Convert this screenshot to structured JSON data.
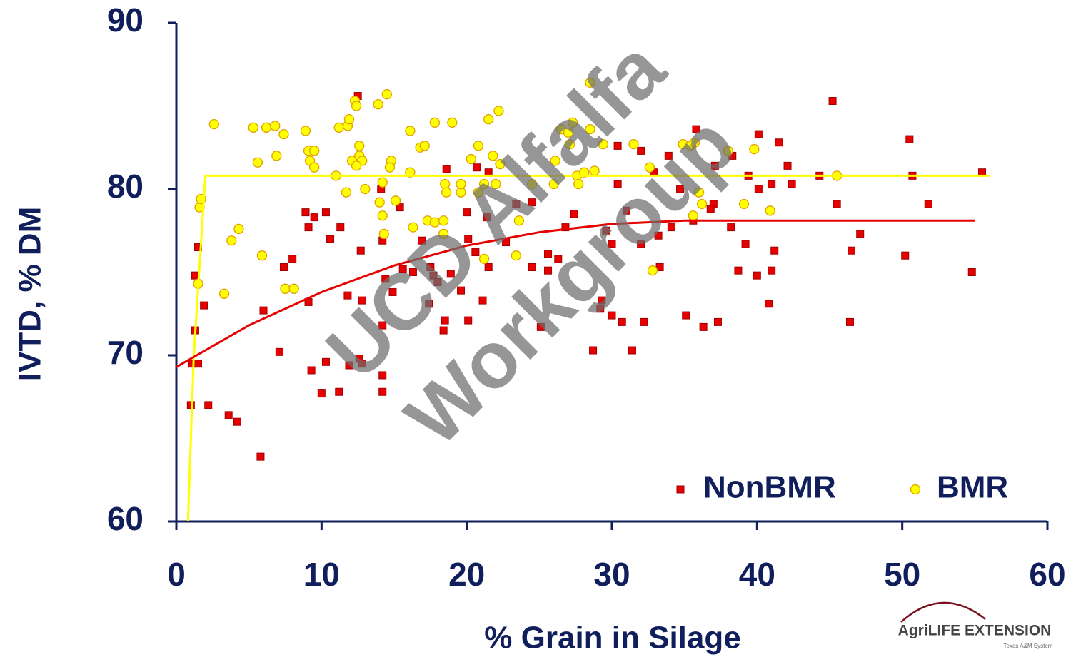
{
  "chart_data": {
    "type": "scatter",
    "xlabel": "% Grain in Silage",
    "ylabel": "IVTD, % DM",
    "xlim": [
      0,
      60
    ],
    "ylim": [
      60,
      90
    ],
    "xticks": [
      0,
      10,
      20,
      30,
      40,
      50,
      60
    ],
    "yticks": [
      60,
      70,
      80,
      90
    ],
    "legend": "lower right",
    "grid": false,
    "watermark": [
      "UCD Alfalfa",
      "Workgroup"
    ],
    "logo": {
      "text": "AgriLIFE EXTENSION",
      "subtext": "Texas A&M System"
    },
    "series": [
      {
        "name": "NonBMR",
        "color": "#e60000",
        "marker": "square",
        "x": [
          12.5,
          45.2,
          50.5,
          35.8,
          40.1,
          41.5,
          30.4,
          32,
          33.9,
          55.5,
          50.7,
          44.3,
          42.1,
          39.4,
          37.1,
          41.0,
          42.4,
          30.4,
          34.7,
          40.1,
          51.8,
          45.5,
          37.0,
          31,
          27.4,
          23.4,
          24.5,
          18.6,
          20.7,
          21.5,
          20,
          21.4,
          15.4,
          14.1,
          8.9,
          10.3,
          9.5,
          11.3,
          10.6,
          9.1,
          1.5,
          1.3,
          1.9,
          1.3,
          1.1,
          1.5,
          1.0,
          2.2,
          3.6,
          4.2,
          5.8,
          6.0,
          7.1,
          7.4,
          8.0,
          9.1,
          9.3,
          10.0,
          10.3,
          11.2,
          11.8,
          11.9,
          12.6,
          12.8,
          12.8,
          12.7,
          14.2,
          14.4,
          14.2,
          14.2,
          14.2,
          14.9,
          15.6,
          16.3,
          16.9,
          17.4,
          17.5,
          17.7,
          18.0,
          18.4,
          18.5,
          18.9,
          19.6,
          20.1,
          20.1,
          20.6,
          21.1,
          21.5,
          22.7,
          24.5,
          25.1,
          25.6,
          25.6,
          26.3,
          26.8,
          28.7,
          29.2,
          29.3,
          29.6,
          30.0,
          30.0,
          30.7,
          31.4,
          32.0,
          32.2,
          32.9,
          33.2,
          33.3,
          34.1,
          35.1,
          35.6,
          36.3,
          36.8,
          37.3,
          38.2,
          38.7,
          39.2,
          40.0,
          40.8,
          41.0,
          41.2,
          46.4,
          46.5,
          47.1,
          50.2,
          54.8,
          38.3
        ],
        "values": [
          85.6,
          85.3,
          83.0,
          83.6,
          83.3,
          82.8,
          82.6,
          82.3,
          82.0,
          81.0,
          80.8,
          80.8,
          81.4,
          80.8,
          81.4,
          80.3,
          80.3,
          80.3,
          80.0,
          80.0,
          79.1,
          79.1,
          79.1,
          78.7,
          78.5,
          79.1,
          79.2,
          81.2,
          81.3,
          81.0,
          78.6,
          78.3,
          78.9,
          80.0,
          78.6,
          78.6,
          78.3,
          77.7,
          77.0,
          77.7,
          76.5,
          74.8,
          73.0,
          71.5,
          69.5,
          69.5,
          67.0,
          67.0,
          66.4,
          66.0,
          63.9,
          72.7,
          70.2,
          75.3,
          75.8,
          73.2,
          69.1,
          67.7,
          69.6,
          67.8,
          73.6,
          69.4,
          69.8,
          69.5,
          73.3,
          76.3,
          76.9,
          74.6,
          71.8,
          68.8,
          67.8,
          73.8,
          75.2,
          75.0,
          76.9,
          73.1,
          75.3,
          74.8,
          74.4,
          71.5,
          72.1,
          74.9,
          73.9,
          72.1,
          77.0,
          76.2,
          73.3,
          75.3,
          76.8,
          75.3,
          71.7,
          75.1,
          76.1,
          75.8,
          77.7,
          70.3,
          72.8,
          73.3,
          77.5,
          76.7,
          72.4,
          72.0,
          70.3,
          76.7,
          72.0,
          81.0,
          77.2,
          75.3,
          77.7,
          72.4,
          78.1,
          71.7,
          78.8,
          72.0,
          77.7,
          75.1,
          76.7,
          74.8,
          73.1,
          75.1,
          76.3,
          72.0,
          76.3,
          77.3,
          76.0,
          75.0,
          82.0
        ]
      },
      {
        "name": "BMR",
        "color": "#ffff00",
        "marker": "circle",
        "x": [
          2.6,
          5.3,
          6.2,
          6.8,
          7.4,
          8.9,
          5.6,
          6.9,
          9.1,
          9.5,
          9.2,
          9.5,
          11.0,
          11.2,
          11.8,
          11.9,
          12.3,
          12.4,
          13.9,
          14.5,
          12.6,
          12.6,
          12.1,
          12.8,
          12.4,
          13.0,
          11.7,
          14.0,
          14.2,
          14.8,
          14.7,
          15.1,
          14.2,
          14.3,
          1.6,
          1.7,
          1.5,
          3.3,
          3.8,
          4.3,
          5.9,
          7.5,
          8.1,
          16.1,
          16.1,
          16.8,
          17.1,
          17.8,
          19.0,
          16.3,
          17.3,
          17.8,
          18.4,
          18.4,
          18.5,
          18.6,
          19.6,
          19.6,
          20.3,
          20.8,
          20.8,
          21.2,
          21.2,
          21.5,
          22.2,
          21.8,
          22.3,
          22.0,
          23.6,
          23.4,
          24.5,
          26.1,
          26.0,
          26.5,
          27.0,
          27.1,
          27.3,
          27.6,
          27.7,
          28.1,
          28.5,
          28.5,
          28.8,
          29.4,
          31.5,
          32.6,
          32.8,
          34.9,
          35.4,
          35.7,
          36.0,
          36.2,
          35.6,
          38.0,
          39.1,
          39.8,
          40.9,
          45.5
        ],
        "values": [
          83.9,
          83.7,
          83.7,
          83.8,
          83.3,
          83.5,
          81.6,
          82.0,
          82.3,
          82.3,
          81.7,
          81.3,
          80.8,
          83.7,
          83.8,
          84.2,
          85.3,
          85.0,
          85.1,
          85.7,
          82.6,
          82.0,
          81.7,
          81.7,
          81.4,
          80.0,
          79.8,
          79.2,
          80.4,
          81.7,
          81.3,
          79.3,
          78.4,
          77.3,
          78.9,
          79.4,
          74.3,
          73.7,
          76.9,
          77.6,
          76.0,
          74.0,
          74.0,
          83.5,
          81.0,
          82.5,
          82.6,
          84.0,
          84.0,
          77.7,
          78.1,
          78.0,
          78.1,
          77.3,
          80.3,
          79.8,
          79.8,
          80.3,
          81.8,
          82.6,
          79.8,
          80.3,
          75.8,
          84.2,
          84.7,
          82.0,
          81.5,
          80.3,
          78.1,
          76.0,
          80.3,
          81.7,
          80.3,
          83.6,
          83.4,
          82.7,
          84.0,
          80.8,
          80.3,
          81.0,
          86.4,
          83.6,
          81.1,
          82.7,
          82.7,
          81.3,
          75.1,
          82.7,
          82.6,
          82.8,
          79.8,
          79.1,
          78.4,
          82.3,
          79.1,
          82.4,
          78.7,
          80.8
        ]
      }
    ],
    "trend_lines": [
      {
        "color": "#ffff00",
        "x": [
          0.8,
          1.2,
          2,
          56
        ],
        "values": [
          60,
          70,
          80.8,
          80.8
        ]
      },
      {
        "color": "#e60000",
        "x": [
          0,
          5,
          10,
          15,
          20,
          25,
          30,
          35,
          55
        ],
        "values": [
          69.3,
          71.8,
          73.8,
          75.4,
          76.6,
          77.4,
          77.9,
          78.1,
          78.1
        ]
      }
    ]
  }
}
